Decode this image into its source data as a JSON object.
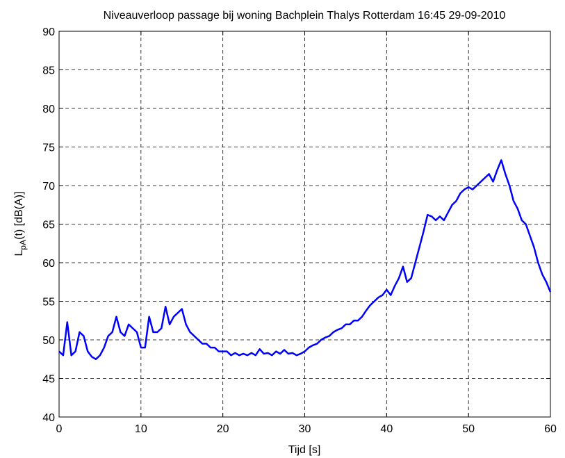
{
  "chart_data": {
    "type": "line",
    "title": "Niveauverloop passage bij woning Bachplein Thalys Rotterdam 16:45 29-09-2010",
    "xlabel": "Tijd [s]",
    "ylabel": [
      "L",
      "pA",
      "(t) [dB(A)]"
    ],
    "x": [
      0,
      0.5,
      1,
      1.5,
      2,
      2.5,
      3,
      3.5,
      4,
      4.5,
      5,
      5.5,
      6,
      6.5,
      7,
      7.5,
      8,
      8.5,
      9,
      9.5,
      10,
      10.5,
      11,
      11.5,
      12,
      12.5,
      13,
      13.5,
      14,
      14.5,
      15,
      15.5,
      16,
      16.5,
      17,
      17.5,
      18,
      18.5,
      19,
      19.5,
      20,
      20.5,
      21,
      21.5,
      22,
      22.5,
      23,
      23.5,
      24,
      24.5,
      25,
      25.5,
      26,
      26.5,
      27,
      27.5,
      28,
      28.5,
      29,
      29.5,
      30,
      30.5,
      31,
      31.5,
      32,
      32.5,
      33,
      33.5,
      34,
      34.5,
      35,
      35.5,
      36,
      36.5,
      37,
      37.5,
      38,
      38.5,
      39,
      39.5,
      40,
      40.5,
      41,
      41.5,
      42,
      42.5,
      43,
      43.5,
      44,
      44.5,
      45,
      45.5,
      46,
      46.5,
      47,
      47.5,
      48,
      48.5,
      49,
      49.5,
      50,
      50.5,
      51,
      51.5,
      52,
      52.5,
      53,
      53.5,
      54,
      54.5,
      55,
      55.5,
      56,
      56.5,
      57,
      57.5,
      58,
      58.5,
      59,
      59.5,
      60
    ],
    "series": [
      {
        "color": "#0000ff",
        "values": [
          48.5,
          48,
          52.3,
          48,
          48.5,
          51,
          50.5,
          48.5,
          47.8,
          47.5,
          48,
          49,
          50.5,
          51,
          53,
          51,
          50.5,
          52,
          51.5,
          51,
          49,
          49,
          53,
          51,
          51,
          51.5,
          54.3,
          52,
          53,
          53.5,
          54,
          52,
          51,
          50.5,
          50,
          49.5,
          49.5,
          49,
          49,
          48.5,
          48.5,
          48.5,
          48,
          48.3,
          48,
          48.2,
          48,
          48.3,
          48,
          48.8,
          48.2,
          48.3,
          48,
          48.5,
          48.2,
          48.7,
          48.2,
          48.3,
          48,
          48.2,
          48.5,
          49,
          49.3,
          49.5,
          50,
          50.3,
          50.5,
          51,
          51.3,
          51.5,
          52,
          52,
          52.5,
          52.5,
          53,
          53.8,
          54.5,
          55,
          55.5,
          55.8,
          56.5,
          55.8,
          57,
          58,
          59.5,
          57.5,
          58,
          60,
          62,
          64,
          66.2,
          66,
          65.5,
          66,
          65.5,
          66.5,
          67.5,
          68,
          69,
          69.5,
          69.8,
          69.5,
          70,
          70.5,
          71,
          71.5,
          70.5,
          72,
          73.3,
          71.5,
          70,
          68,
          67,
          65.5,
          65,
          63.5,
          62,
          60,
          58.5,
          57.5,
          56.2
        ]
      }
    ],
    "xlim": [
      0,
      60
    ],
    "xticks": [
      0,
      10,
      20,
      30,
      40,
      50,
      60
    ],
    "ylim": [
      40,
      90
    ],
    "yticks": [
      40,
      45,
      50,
      55,
      60,
      65,
      70,
      75,
      80,
      85,
      90
    ],
    "grid": true
  }
}
